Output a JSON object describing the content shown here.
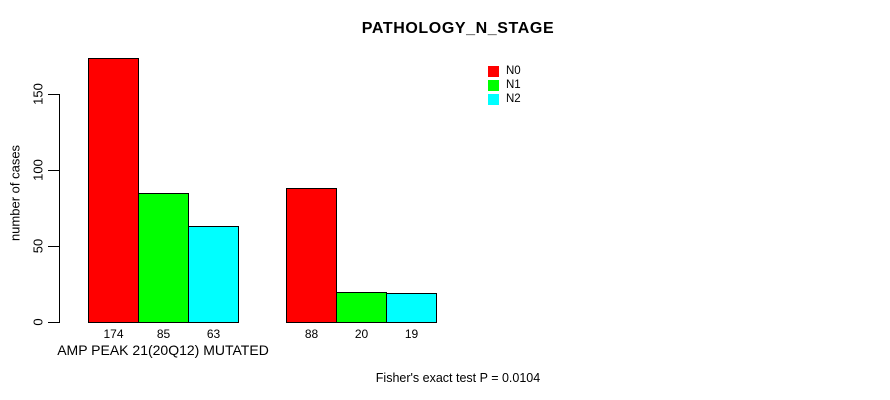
{
  "chart_data": {
    "type": "bar",
    "title": "PATHOLOGY_N_STAGE",
    "ylabel": "number of cases",
    "xlabel": "",
    "yticks": [
      0,
      50,
      100,
      150
    ],
    "ylim": [
      0,
      180
    ],
    "grid": false,
    "legend_position": "top-right",
    "categories": [
      "AMP PEAK 21(20Q12) MUTATED",
      ""
    ],
    "series": [
      {
        "name": "N0",
        "color": "#FF0000",
        "values": [
          174,
          88
        ]
      },
      {
        "name": "N1",
        "color": "#00FF00",
        "values": [
          85,
          20
        ]
      },
      {
        "name": "N2",
        "color": "#00FFFF",
        "values": [
          63,
          19
        ]
      }
    ],
    "footnote": "Fisher's exact test P = 0.0104",
    "colors": {
      "bar_border": "#000000",
      "axis": "#000000",
      "text": "#000000",
      "background": "#FFFFFF"
    }
  }
}
